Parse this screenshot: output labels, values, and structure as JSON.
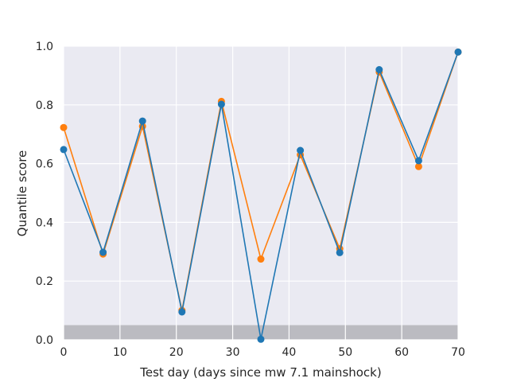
{
  "chart_data": {
    "type": "line",
    "xlabel": "Test day (days since mw 7.1 mainshock)",
    "ylabel": "Quantile score",
    "xlim": [
      0,
      70
    ],
    "ylim": [
      0,
      1
    ],
    "xticks": [
      "0",
      "10",
      "20",
      "30",
      "40",
      "50",
      "60",
      "70"
    ],
    "yticks": [
      "0.0",
      "0.2",
      "0.4",
      "0.6",
      "0.8",
      "1.0"
    ],
    "grid": true,
    "shaded_band": {
      "y_from": 0.0,
      "y_to": 0.05,
      "color": "#b3b3b8"
    },
    "x": [
      0,
      7,
      14,
      21,
      28,
      35,
      42,
      49,
      56,
      63,
      70
    ],
    "series": [
      {
        "color": "#ff7f0e",
        "values": [
          0.723,
          0.292,
          0.727,
          0.1,
          0.812,
          0.275,
          0.63,
          0.31,
          0.912,
          0.59,
          0.98
        ]
      },
      {
        "color": "#1f77b4",
        "values": [
          0.648,
          0.298,
          0.745,
          0.095,
          0.802,
          0.002,
          0.645,
          0.297,
          0.92,
          0.61,
          0.98
        ]
      }
    ],
    "colors": {
      "plot_background": "#eaeaf2",
      "grid": "#ffffff"
    }
  }
}
